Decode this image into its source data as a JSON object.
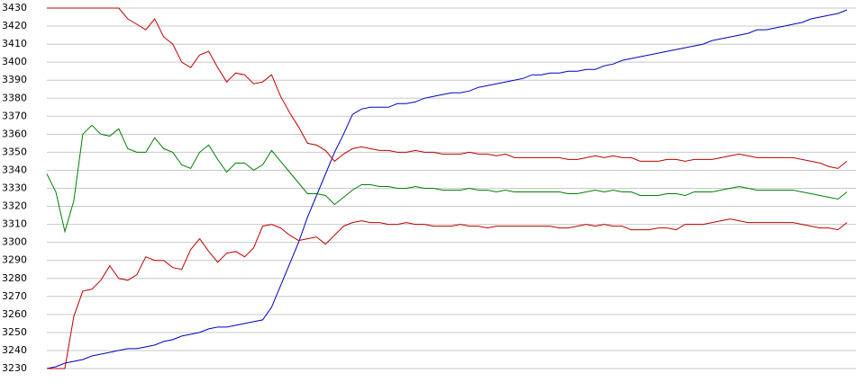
{
  "chart_data": {
    "type": "line",
    "ylim": [
      3230,
      3430
    ],
    "yticks": [
      3230,
      3240,
      3250,
      3260,
      3270,
      3280,
      3290,
      3300,
      3310,
      3320,
      3330,
      3340,
      3350,
      3360,
      3370,
      3380,
      3390,
      3400,
      3410,
      3420,
      3430
    ],
    "grid": true,
    "series": [
      {
        "color": "#0000c0",
        "values": [
          3230,
          3231,
          3233,
          3234,
          3235,
          3237,
          3238,
          3239,
          3240,
          3241,
          3241,
          3242,
          3243,
          3245,
          3246,
          3248,
          3249,
          3250,
          3252,
          3253,
          3253,
          3254,
          3255,
          3256,
          3257,
          3264,
          3276,
          3288,
          3300,
          3314,
          3326,
          3338,
          3350,
          3360,
          3371,
          3374,
          3375,
          3375,
          3375,
          3377,
          3377,
          3378,
          3380,
          3381,
          3382,
          3383,
          3383,
          3384,
          3386,
          3387,
          3388,
          3389,
          3390,
          3391,
          3393,
          3393,
          3394,
          3394,
          3395,
          3395,
          3396,
          3396,
          3398,
          3399,
          3401,
          3402,
          3403,
          3404,
          3405,
          3406,
          3407,
          3408,
          3409,
          3410,
          3412,
          3413,
          3414,
          3415,
          3416,
          3418,
          3418,
          3419,
          3420,
          3421,
          3422,
          3424,
          3425,
          3426,
          3427,
          3429
        ]
      },
      {
        "color": "#c00000",
        "values": [
          3430,
          3430,
          3430,
          3430,
          3430,
          3430,
          3430,
          3430,
          3430,
          3424,
          3421,
          3418,
          3424,
          3414,
          3410,
          3400,
          3397,
          3404,
          3406,
          3397,
          3389,
          3394,
          3393,
          3388,
          3389,
          3393,
          3381,
          3372,
          3364,
          3355,
          3354,
          3351,
          3345,
          3349,
          3352,
          3353,
          3352,
          3351,
          3351,
          3350,
          3350,
          3351,
          3350,
          3350,
          3349,
          3349,
          3349,
          3350,
          3349,
          3349,
          3348,
          3349,
          3347,
          3347,
          3347,
          3347,
          3347,
          3347,
          3346,
          3346,
          3347,
          3348,
          3347,
          3348,
          3347,
          3347,
          3345,
          3345,
          3345,
          3346,
          3346,
          3345,
          3346,
          3346,
          3346,
          3347,
          3348,
          3349,
          3348,
          3347,
          3347,
          3347,
          3347,
          3347,
          3346,
          3345,
          3344,
          3342,
          3341,
          3345
        ]
      },
      {
        "color": "#008000",
        "values": [
          3338,
          3328,
          3306,
          3323,
          3360,
          3365,
          3360,
          3359,
          3363,
          3352,
          3350,
          3350,
          3358,
          3352,
          3350,
          3343,
          3341,
          3350,
          3354,
          3346,
          3339,
          3344,
          3344,
          3340,
          3343,
          3351,
          3345,
          3339,
          3333,
          3327,
          3327,
          3326,
          3321,
          3325,
          3329,
          3332,
          3332,
          3331,
          3331,
          3330,
          3330,
          3331,
          3330,
          3330,
          3329,
          3329,
          3329,
          3330,
          3329,
          3329,
          3328,
          3329,
          3328,
          3328,
          3328,
          3328,
          3328,
          3328,
          3327,
          3327,
          3328,
          3329,
          3328,
          3329,
          3328,
          3328,
          3326,
          3326,
          3326,
          3327,
          3327,
          3326,
          3328,
          3328,
          3328,
          3329,
          3330,
          3331,
          3330,
          3329,
          3329,
          3329,
          3329,
          3329,
          3328,
          3327,
          3326,
          3325,
          3324,
          3328
        ]
      },
      {
        "color": "#c00000",
        "values": [
          3230,
          3230,
          3230,
          3259,
          3273,
          3274,
          3279,
          3287,
          3280,
          3279,
          3282,
          3292,
          3290,
          3290,
          3286,
          3285,
          3296,
          3302,
          3295,
          3289,
          3294,
          3295,
          3292,
          3297,
          3309,
          3310,
          3308,
          3304,
          3301,
          3302,
          3303,
          3299,
          3304,
          3309,
          3311,
          3312,
          3311,
          3311,
          3310,
          3310,
          3311,
          3310,
          3310,
          3309,
          3309,
          3309,
          3310,
          3309,
          3309,
          3308,
          3309,
          3309,
          3309,
          3309,
          3309,
          3309,
          3309,
          3308,
          3308,
          3309,
          3310,
          3309,
          3310,
          3309,
          3309,
          3307,
          3307,
          3307,
          3308,
          3308,
          3307,
          3310,
          3310,
          3310,
          3311,
          3312,
          3313,
          3312,
          3311,
          3311,
          3311,
          3311,
          3311,
          3311,
          3310,
          3309,
          3308,
          3308,
          3307,
          3311
        ]
      }
    ]
  }
}
